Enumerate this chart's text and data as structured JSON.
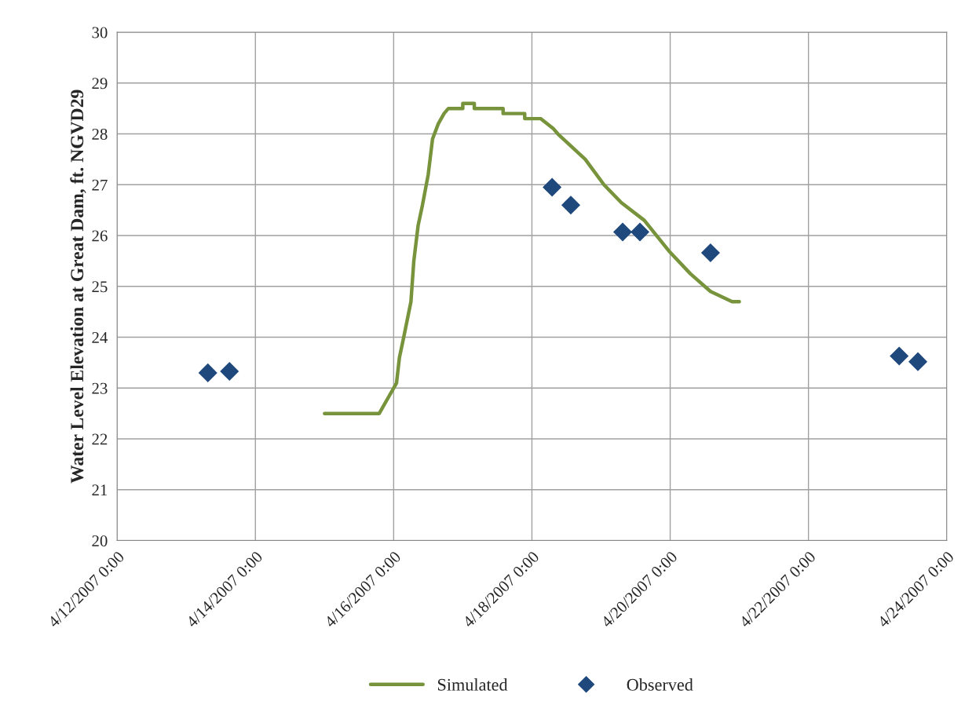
{
  "chart_data": {
    "type": "line",
    "ylabel": "Water Level Elevation at Great Dam, ft. NGVD29",
    "xlim": [
      "2007-04-12",
      "2007-04-24"
    ],
    "xticks": [
      {
        "value": "2007-04-12",
        "label": "4/12/2007 0:00"
      },
      {
        "value": "2007-04-14",
        "label": "4/14/2007 0:00"
      },
      {
        "value": "2007-04-16",
        "label": "4/16/2007 0:00"
      },
      {
        "value": "2007-04-18",
        "label": "4/18/2007 0:00"
      },
      {
        "value": "2007-04-20",
        "label": "4/20/2007 0:00"
      },
      {
        "value": "2007-04-22",
        "label": "4/22/2007 0:00"
      },
      {
        "value": "2007-04-24",
        "label": "4/24/2007 0:00"
      }
    ],
    "ylim": [
      20,
      30
    ],
    "yticks": [
      20,
      21,
      22,
      23,
      24,
      25,
      26,
      27,
      28,
      29,
      30
    ],
    "grid": true,
    "legend": "bottom",
    "series": [
      {
        "name": "Simulated",
        "color": "#77933c",
        "marker": "none",
        "line_style": "solid",
        "x": [
          "2007-04-15T00:00",
          "2007-04-15T19:00",
          "2007-04-15T20:00",
          "2007-04-15T22:00",
          "2007-04-16T00:00",
          "2007-04-16T01:00",
          "2007-04-16T02:00",
          "2007-04-16T03:30",
          "2007-04-16T06:00",
          "2007-04-16T07:00",
          "2007-04-16T08:30",
          "2007-04-16T10:00",
          "2007-04-16T12:00",
          "2007-04-16T13:30",
          "2007-04-16T15:30",
          "2007-04-16T17:30",
          "2007-04-16T19:00",
          "2007-04-17T00:00",
          "2007-04-17T00:00",
          "2007-04-17T04:00",
          "2007-04-17T04:00",
          "2007-04-17T14:00",
          "2007-04-17T14:00",
          "2007-04-17T21:30",
          "2007-04-17T21:30",
          "2007-04-18T03:00",
          "2007-04-18T07:30",
          "2007-04-18T09:00",
          "2007-04-18T18:30",
          "2007-04-19T01:00",
          "2007-04-19T07:00",
          "2007-04-19T15:00",
          "2007-04-19T23:30",
          "2007-04-20T07:00",
          "2007-04-20T14:00",
          "2007-04-20T21:30",
          "2007-04-21T00:00"
        ],
        "values": [
          22.5,
          22.5,
          22.6,
          22.8,
          23.0,
          23.1,
          23.6,
          24.0,
          24.7,
          25.5,
          26.2,
          26.6,
          27.2,
          27.9,
          28.2,
          28.4,
          28.5,
          28.5,
          28.6,
          28.6,
          28.5,
          28.5,
          28.4,
          28.4,
          28.3,
          28.3,
          28.1,
          28.0,
          27.5,
          27.0,
          26.65,
          26.3,
          25.7,
          25.25,
          24.9,
          24.7,
          24.7
        ]
      },
      {
        "name": "Observed",
        "type": "scatter",
        "color": "#1f497d",
        "marker": "diamond",
        "x": [
          "2007-04-13T07:30",
          "2007-04-13T15:00",
          "2007-04-18T07:00",
          "2007-04-18T13:30",
          "2007-04-19T07:30",
          "2007-04-19T13:30",
          "2007-04-20T14:00",
          "2007-04-23T07:30",
          "2007-04-23T14:00"
        ],
        "values": [
          23.3,
          23.33,
          26.95,
          26.6,
          26.07,
          26.07,
          25.66,
          23.63,
          23.52
        ]
      }
    ]
  }
}
